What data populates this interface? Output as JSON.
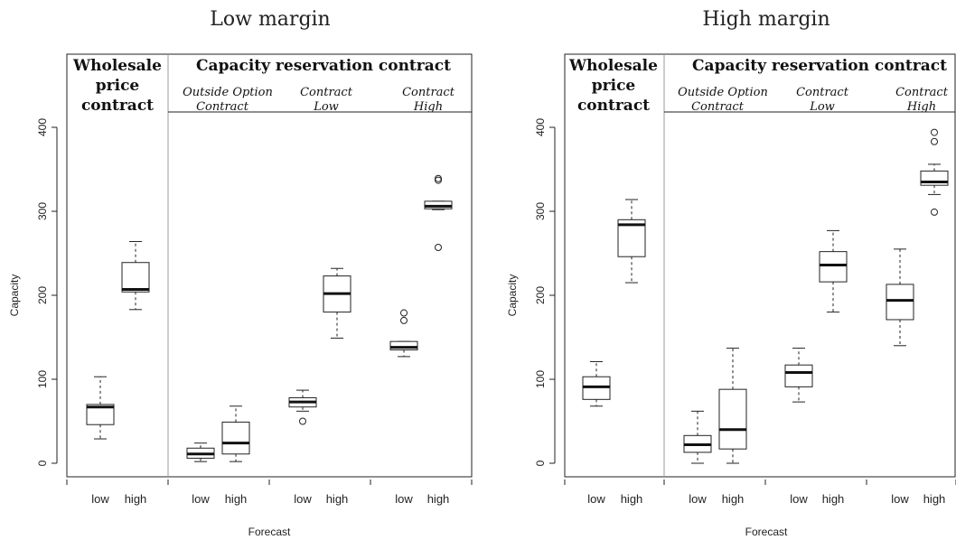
{
  "chart_data": [
    {
      "type": "box",
      "title": "Low margin",
      "ylabel": "Capacity",
      "xlabel": "Forecast",
      "ylim": [
        -15,
        420
      ],
      "yticks": [
        0,
        100,
        200,
        300,
        400
      ],
      "group_headers": {
        "wholesale": [
          "Wholesale",
          "price",
          "contract"
        ],
        "capacity": "Capacity reservation contract"
      },
      "sub_headers": [
        {
          "lines": [
            "Outside Option",
            "Contract"
          ]
        },
        {
          "lines": [
            "Contract",
            "Low"
          ]
        },
        {
          "lines": [
            "Contract",
            "High"
          ]
        }
      ],
      "boxes": [
        {
          "group": "Wholesale price contract",
          "forecast": "low",
          "whisker_low": 29,
          "q1": 46,
          "median": 67,
          "q3": 70,
          "whisker_high": 103,
          "outliers": []
        },
        {
          "group": "Wholesale price contract",
          "forecast": "high",
          "whisker_low": 183,
          "q1": 204,
          "median": 207,
          "q3": 239,
          "whisker_high": 264,
          "outliers": []
        },
        {
          "group": "Outside Option Contract",
          "forecast": "low",
          "whisker_low": 2,
          "q1": 6,
          "median": 11,
          "q3": 18,
          "whisker_high": 24,
          "outliers": []
        },
        {
          "group": "Outside Option Contract",
          "forecast": "high",
          "whisker_low": 2,
          "q1": 11,
          "median": 24,
          "q3": 49,
          "whisker_high": 68,
          "outliers": []
        },
        {
          "group": "Contract Low",
          "forecast": "low",
          "whisker_low": 62,
          "q1": 67,
          "median": 73,
          "q3": 78,
          "whisker_high": 87,
          "outliers": [
            50
          ]
        },
        {
          "group": "Contract Low",
          "forecast": "high",
          "whisker_low": 149,
          "q1": 180,
          "median": 202,
          "q3": 223,
          "whisker_high": 232,
          "outliers": []
        },
        {
          "group": "Contract High",
          "forecast": "low",
          "whisker_low": 127,
          "q1": 135,
          "median": 138,
          "q3": 145,
          "whisker_high": 145,
          "outliers": [
            170,
            179
          ]
        },
        {
          "group": "Contract High",
          "forecast": "high",
          "whisker_low": 302,
          "q1": 303,
          "median": 306,
          "q3": 312,
          "whisker_high": 312,
          "outliers": [
            257,
            337,
            339
          ]
        }
      ],
      "xtick_labels": [
        "low",
        "high",
        "low",
        "high",
        "low",
        "high",
        "low",
        "high"
      ]
    },
    {
      "type": "box",
      "title": "High margin",
      "ylabel": "Capacity",
      "xlabel": "Forecast",
      "ylim": [
        -15,
        420
      ],
      "yticks": [
        0,
        100,
        200,
        300,
        400
      ],
      "group_headers": {
        "wholesale": [
          "Wholesale",
          "price",
          "contract"
        ],
        "capacity": "Capacity reservation contract"
      },
      "sub_headers": [
        {
          "lines": [
            "Outside Option",
            "Contract"
          ]
        },
        {
          "lines": [
            "Contract",
            "Low"
          ]
        },
        {
          "lines": [
            "Contract",
            "High"
          ]
        }
      ],
      "boxes": [
        {
          "group": "Wholesale price contract",
          "forecast": "low",
          "whisker_low": 68,
          "q1": 76,
          "median": 91,
          "q3": 103,
          "whisker_high": 121,
          "outliers": []
        },
        {
          "group": "Wholesale price contract",
          "forecast": "high",
          "whisker_low": 215,
          "q1": 246,
          "median": 284,
          "q3": 290,
          "whisker_high": 314,
          "outliers": []
        },
        {
          "group": "Outside Option Contract",
          "forecast": "low",
          "whisker_low": 0,
          "q1": 13,
          "median": 22,
          "q3": 33,
          "whisker_high": 62,
          "outliers": []
        },
        {
          "group": "Outside Option Contract",
          "forecast": "high",
          "whisker_low": 0,
          "q1": 17,
          "median": 40,
          "q3": 88,
          "whisker_high": 137,
          "outliers": []
        },
        {
          "group": "Contract Low",
          "forecast": "low",
          "whisker_low": 73,
          "q1": 91,
          "median": 108,
          "q3": 117,
          "whisker_high": 137,
          "outliers": []
        },
        {
          "group": "Contract Low",
          "forecast": "high",
          "whisker_low": 180,
          "q1": 216,
          "median": 236,
          "q3": 252,
          "whisker_high": 277,
          "outliers": []
        },
        {
          "group": "Contract High",
          "forecast": "low",
          "whisker_low": 140,
          "q1": 171,
          "median": 194,
          "q3": 213,
          "whisker_high": 255,
          "outliers": []
        },
        {
          "group": "Contract High",
          "forecast": "high",
          "whisker_low": 320,
          "q1": 331,
          "median": 335,
          "q3": 348,
          "whisker_high": 356,
          "outliers": [
            299,
            383,
            394
          ]
        }
      ],
      "xtick_labels": [
        "low",
        "high",
        "low",
        "high",
        "low",
        "high",
        "low",
        "high"
      ]
    }
  ]
}
